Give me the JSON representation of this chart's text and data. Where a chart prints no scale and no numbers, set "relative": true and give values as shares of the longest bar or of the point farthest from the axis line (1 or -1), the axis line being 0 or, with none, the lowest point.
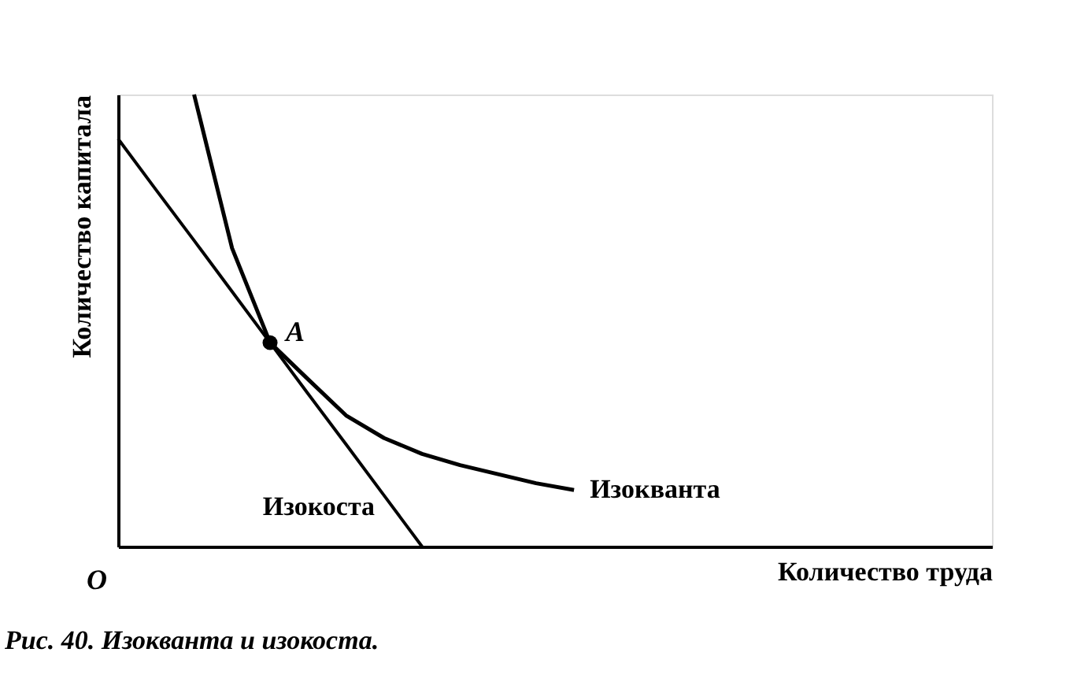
{
  "chart_data": {
    "type": "line",
    "relative": true,
    "xlabel": "Количество труда",
    "ylabel": "Количество капитала",
    "tick_labels": false,
    "marker": "none",
    "line_style": "solid",
    "categories": [
      null,
      null,
      null,
      null,
      null,
      null,
      null,
      null,
      null,
      null,
      null,
      null,
      null,
      null,
      null,
      null,
      null,
      null,
      null,
      null,
      null,
      null,
      null,
      null
    ],
    "series": [
      {
        "name": "Изокоста",
        "color": "#000000",
        "values": [
          0.902,
          0.789,
          0.677,
          0.564,
          0.451,
          0.338,
          0.226,
          0.113,
          0,
          null,
          null,
          null,
          null,
          null,
          null,
          null,
          null,
          null,
          null,
          null,
          null,
          null,
          null,
          null
        ]
      },
      {
        "name": "Изокванта",
        "color": "#000000",
        "values": [
          null,
          null,
          1.0,
          0.66,
          0.451,
          0.37,
          0.29,
          0.24,
          0.205,
          0.18,
          0.16,
          0.14,
          0.125,
          null,
          null,
          null,
          null,
          null,
          null,
          null,
          null,
          null,
          null,
          null
        ]
      }
    ],
    "annotations": [
      "A",
      "O",
      "Рис. 40. Изокванта и изокоста."
    ]
  }
}
